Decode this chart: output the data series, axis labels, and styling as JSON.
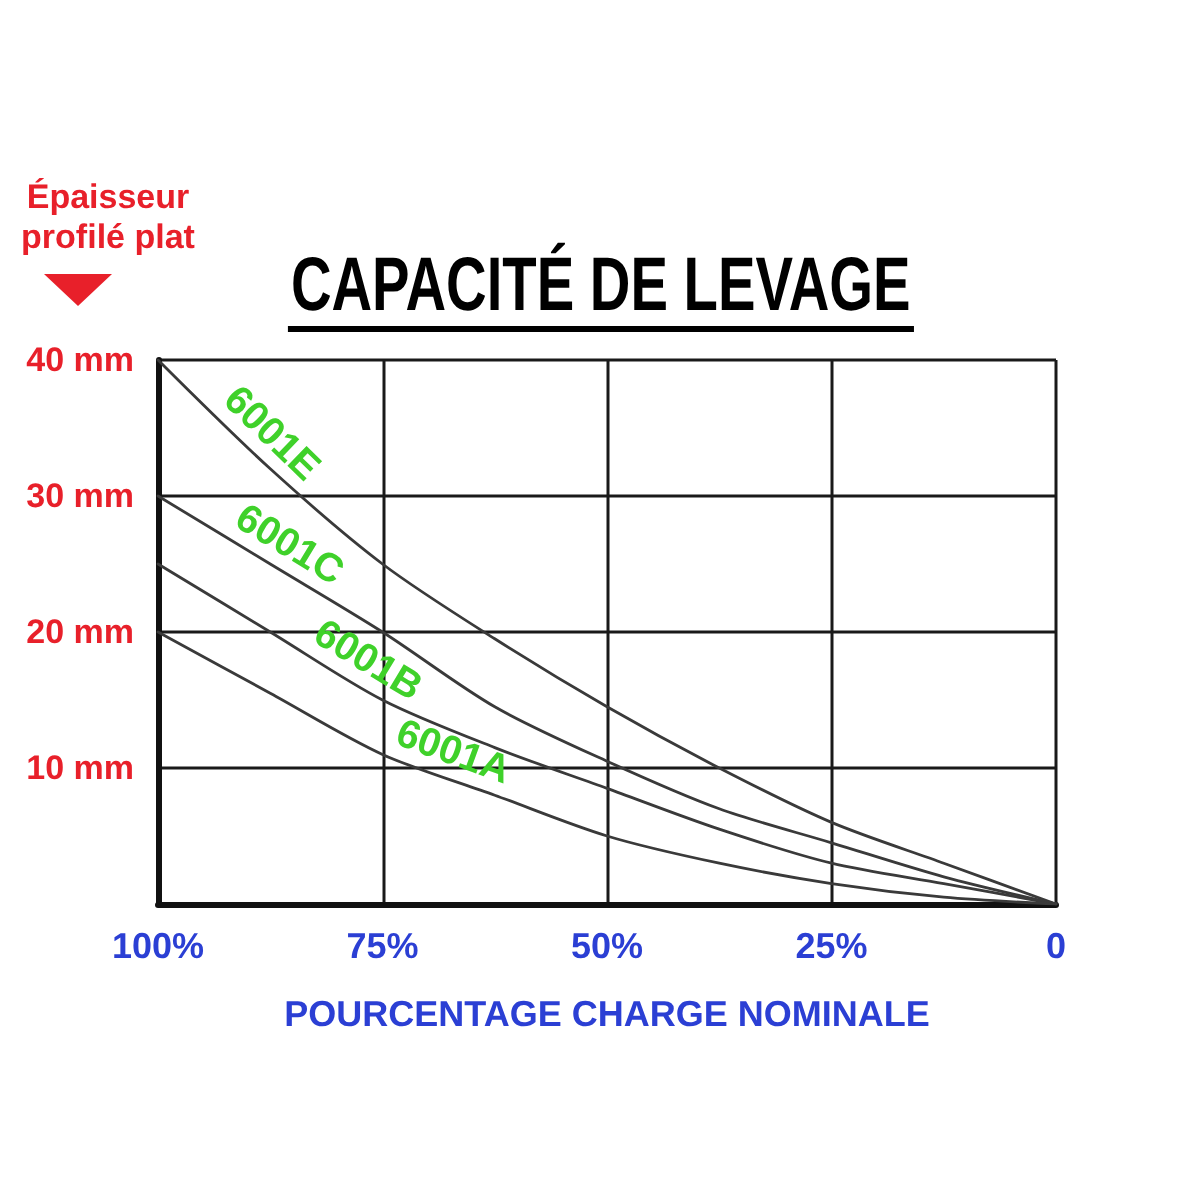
{
  "chart_data": {
    "type": "line",
    "title": "CAPACITÉ DE LEVAGE",
    "xlabel": "POURCENTAGE CHARGE NOMINALE",
    "ylabel": "Épaisseur profilé plat",
    "x": [
      100,
      87.5,
      75,
      62.5,
      50,
      37.5,
      25,
      12.5,
      0
    ],
    "series": [
      {
        "name": "6001E",
        "color": "#3a3a3a",
        "values": [
          40,
          32,
          25,
          19.5,
          14.5,
          10,
          6,
          3,
          0
        ]
      },
      {
        "name": "6001C",
        "color": "#3a3a3a",
        "values": [
          30,
          25,
          20,
          14.5,
          10.5,
          7,
          4.5,
          2,
          0
        ]
      },
      {
        "name": "6001B",
        "color": "#3a3a3a",
        "values": [
          25,
          20,
          15,
          11.5,
          8.5,
          5.5,
          3,
          1.5,
          0
        ]
      },
      {
        "name": "6001A",
        "color": "#3a3a3a",
        "values": [
          20,
          15.5,
          11,
          8,
          5,
          3,
          1.5,
          0.5,
          0
        ]
      }
    ],
    "xlim": [
      100,
      0
    ],
    "xticks": [
      {
        "value": 100,
        "label": "100%"
      },
      {
        "value": 75,
        "label": "75%"
      },
      {
        "value": 50,
        "label": "50%"
      },
      {
        "value": 25,
        "label": "25%"
      },
      0
    ],
    "ylim": [
      0,
      40
    ],
    "yticks": [
      {
        "value": 10,
        "label": "10 mm"
      },
      {
        "value": 20,
        "label": "20 mm"
      },
      {
        "value": 30,
        "label": "30 mm"
      },
      {
        "value": 40,
        "label": "40 mm"
      }
    ],
    "grid": true,
    "marker": "none",
    "line_style": "solid"
  }
}
